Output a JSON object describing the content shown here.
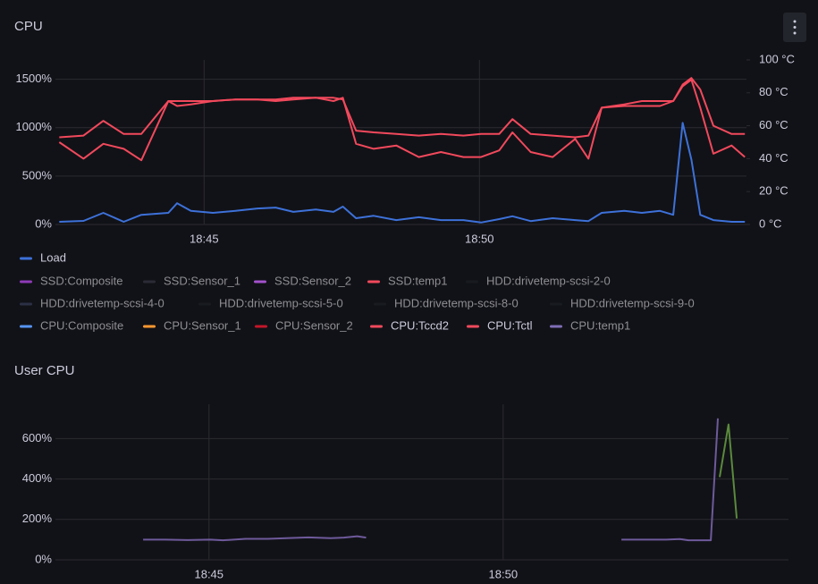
{
  "chart_data": [
    {
      "type": "line",
      "title": "CPU",
      "x": [
        42.37,
        42.81,
        43.17,
        43.54,
        43.86,
        44.35,
        44.51,
        44.76,
        45.16,
        45.57,
        45.97,
        46.3,
        46.62,
        47.03,
        47.35,
        47.52,
        47.76,
        48.08,
        48.49,
        48.9,
        49.3,
        49.71,
        50.03,
        50.36,
        50.6,
        50.93,
        51.33,
        51.74,
        51.98,
        52.22,
        52.63,
        52.95,
        53.28,
        53.52,
        53.69,
        53.85,
        54.01,
        54.25,
        54.58,
        54.82
      ],
      "xlim": [
        42.3,
        54.85
      ],
      "xticks": [
        {
          "value": 45,
          "label": "18:45"
        },
        {
          "value": 50,
          "label": "18:50"
        }
      ],
      "ylim": [
        0,
        1700
      ],
      "yticks": [
        {
          "value": 0,
          "label": "0%"
        },
        {
          "value": 500,
          "label": "500%"
        },
        {
          "value": 1000,
          "label": "1000%"
        },
        {
          "value": 1500,
          "label": "1500%"
        }
      ],
      "y2lim": [
        0,
        100
      ],
      "y2ticks": [
        {
          "value": 0,
          "label": "0 °C"
        },
        {
          "value": 20,
          "label": "20 °C"
        },
        {
          "value": 40,
          "label": "40 °C"
        },
        {
          "value": 60,
          "label": "60 °C"
        },
        {
          "value": 80,
          "label": "80 °C"
        },
        {
          "value": 100,
          "label": "100 °C"
        }
      ],
      "grid": true,
      "series": [
        {
          "name": "Load",
          "color": "#3d71d9",
          "values": [
            28,
            37,
            120,
            28,
            100,
            120,
            220,
            140,
            120,
            140,
            165,
            175,
            130,
            155,
            130,
            185,
            65,
            90,
            45,
            75,
            45,
            45,
            20,
            55,
            85,
            35,
            65,
            45,
            35,
            120,
            140,
            120,
            140,
            100,
            1050,
            670,
            100,
            45,
            28,
            28
          ]
        },
        {
          "name": "SSD:Composite",
          "color": "#8f3bb8",
          "x": [],
          "values": []
        },
        {
          "name": "SSD:Sensor_1",
          "color": "#2a2b36",
          "x": [],
          "values": []
        },
        {
          "name": "SSD:Sensor_2",
          "color": "#a352cc",
          "x": [],
          "values": []
        },
        {
          "name": "SSD:temp1",
          "color": "#f2495c",
          "x": [],
          "values": []
        },
        {
          "name": "HDD:drivetemp-scsi-2-0",
          "color": "#181b1f",
          "x": [],
          "values": []
        },
        {
          "name": "HDD:drivetemp-scsi-4-0",
          "color": "#2c3045",
          "x": [],
          "values": []
        },
        {
          "name": "HDD:drivetemp-scsi-5-0",
          "color": "#181b1f",
          "x": [],
          "values": []
        },
        {
          "name": "HDD:drivetemp-scsi-8-0",
          "color": "#181b1f",
          "x": [],
          "values": []
        },
        {
          "name": "HDD:drivetemp-scsi-9-0",
          "color": "#181b1f",
          "x": [],
          "values": []
        },
        {
          "name": "CPU:Composite",
          "color": "#5794f2",
          "x": [],
          "values": []
        },
        {
          "name": "CPU:Sensor_1",
          "color": "#ff9830",
          "x": [],
          "values": []
        },
        {
          "name": "CPU:Sensor_2",
          "color": "#c4162a",
          "x": [],
          "values": []
        },
        {
          "name": "CPU:Tccd2",
          "color": "#f2495c",
          "axis": "y2",
          "values": [
            50,
            40,
            49,
            46,
            39,
            75,
            72,
            73,
            75,
            76,
            76,
            75,
            76,
            77,
            75,
            77,
            49,
            46,
            48,
            41,
            44,
            41,
            41,
            45,
            56,
            44,
            41,
            52,
            40,
            71,
            72,
            72,
            72,
            75,
            84,
            88,
            71,
            43,
            48,
            41
          ]
        },
        {
          "name": "CPU:Tctl",
          "color": "#f2495c",
          "axis": "y2",
          "values": [
            53,
            54,
            63,
            55,
            55,
            75,
            75,
            75,
            75,
            76,
            76,
            76,
            77,
            77,
            77,
            76,
            57,
            56,
            55,
            54,
            55,
            54,
            55,
            55,
            64,
            55,
            54,
            53,
            54,
            71,
            73,
            75,
            75,
            75,
            85,
            89,
            82,
            60,
            55,
            55
          ]
        },
        {
          "name": "CPU:temp1",
          "color": "#806eb7",
          "x": [],
          "values": []
        }
      ]
    },
    {
      "type": "line",
      "title": "User CPU",
      "xlim": [
        42.39,
        54.85
      ],
      "xticks": [
        {
          "value": 45,
          "label": "18:45"
        },
        {
          "value": 50,
          "label": "18:50"
        }
      ],
      "ylim": [
        0,
        770
      ],
      "yticks": [
        {
          "value": 0,
          "label": "0%"
        },
        {
          "value": 200,
          "label": "200%"
        },
        {
          "value": 400,
          "label": "400%"
        },
        {
          "value": 600,
          "label": "600%"
        }
      ],
      "grid": true,
      "series": [
        {
          "color": "#6e5a9b",
          "x": [
            43.88,
            44.26,
            44.64,
            45.02,
            45.24,
            45.62,
            46.0,
            46.31,
            46.69,
            47.07,
            47.29,
            47.52,
            47.67,
            null,
            52.01,
            52.39,
            52.77,
            53.0,
            53.15,
            53.53,
            53.65
          ],
          "values": [
            100,
            100,
            98,
            100,
            97,
            104,
            104,
            107,
            111,
            107,
            110,
            117,
            110,
            null,
            100,
            100,
            100,
            103,
            97,
            97,
            700
          ]
        },
        {
          "color": "#5a8a3c",
          "x": [
            53.68,
            53.83,
            53.97
          ],
          "values": [
            410,
            670,
            205
          ]
        }
      ]
    }
  ]
}
